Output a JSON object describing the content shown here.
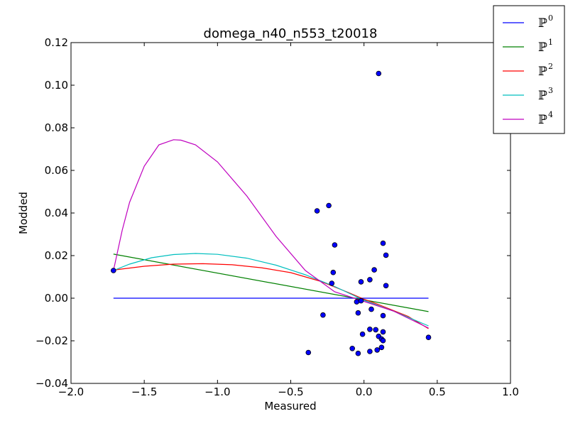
{
  "chart_data": {
    "type": "scatter",
    "title": "domega_n40_n553_t20018",
    "xlabel": "Measured",
    "ylabel": "Modded",
    "xlim": [
      -2.0,
      1.0
    ],
    "ylim": [
      -0.04,
      0.12
    ],
    "xticks": [
      -2.0,
      -1.5,
      -1.0,
      -0.5,
      0.0,
      0.5,
      1.0
    ],
    "xtick_labels": [
      "−2.0",
      "−1.5",
      "−1.0",
      "−0.5",
      "0.0",
      "0.5",
      "1.0"
    ],
    "yticks": [
      -0.04,
      -0.02,
      0.0,
      0.02,
      0.04,
      0.06,
      0.08,
      0.1,
      0.12
    ],
    "ytick_labels": [
      "−0.04",
      "−0.02",
      "0.00",
      "0.02",
      "0.04",
      "0.06",
      "0.08",
      "0.10",
      "0.12"
    ],
    "grid": false,
    "legend_position": "top-right (outside)",
    "points": {
      "color": "#0000ff",
      "x": [
        -1.71,
        0.1,
        -0.24,
        -0.32,
        -0.2,
        0.13,
        0.15,
        -0.21,
        0.07,
        -0.22,
        0.04,
        -0.02,
        0.15,
        -0.05,
        -0.02,
        -0.28,
        0.05,
        -0.04,
        0.13,
        0.04,
        0.08,
        0.13,
        -0.01,
        0.1,
        0.12,
        0.13,
        0.44,
        0.12,
        -0.08,
        0.09,
        0.04,
        -0.04,
        -0.38
      ],
      "y": [
        0.013,
        0.1055,
        0.0435,
        0.041,
        0.025,
        0.0258,
        0.0202,
        0.0121,
        0.0133,
        0.007,
        0.0087,
        0.0077,
        0.0059,
        -0.0017,
        -0.0012,
        -0.0079,
        -0.0052,
        -0.0069,
        -0.0082,
        -0.0146,
        -0.0148,
        -0.0158,
        -0.0169,
        -0.0179,
        -0.0192,
        -0.0199,
        -0.0184,
        -0.0231,
        -0.0236,
        -0.0243,
        -0.025,
        -0.0259,
        -0.0255
      ]
    },
    "series": [
      {
        "name": "P0",
        "label_base": "ℙ",
        "label_sup": "0",
        "color": "#0000ff",
        "x": [
          -1.71,
          0.44
        ],
        "y": [
          0.0,
          0.0
        ]
      },
      {
        "name": "P1",
        "label_base": "ℙ",
        "label_sup": "1",
        "color": "#008000",
        "x": [
          -1.71,
          0.44
        ],
        "y": [
          0.0207,
          -0.0063
        ]
      },
      {
        "name": "P2",
        "label_base": "ℙ",
        "label_sup": "2",
        "color": "#ff0000",
        "x": [
          -1.71,
          -1.5,
          -1.3,
          -1.1,
          -0.9,
          -0.7,
          -0.5,
          -0.3,
          -0.1,
          0.0,
          0.1,
          0.3,
          0.44
        ],
        "y": [
          0.0132,
          0.015,
          0.016,
          0.0162,
          0.0157,
          0.0143,
          0.012,
          0.008,
          0.0025,
          -0.0005,
          -0.003,
          -0.0085,
          -0.0143
        ]
      },
      {
        "name": "P3",
        "label_base": "ℙ",
        "label_sup": "3",
        "color": "#00bfbf",
        "x": [
          -1.71,
          -1.6,
          -1.45,
          -1.3,
          -1.15,
          -1.0,
          -0.8,
          -0.6,
          -0.4,
          -0.2,
          0.0,
          0.2,
          0.44
        ],
        "y": [
          0.013,
          0.016,
          0.019,
          0.0205,
          0.021,
          0.0206,
          0.0188,
          0.0155,
          0.011,
          0.0055,
          -0.001,
          -0.006,
          -0.013
        ]
      },
      {
        "name": "P4",
        "label_base": "ℙ",
        "label_sup": "4",
        "color": "#bf00bf",
        "x": [
          -1.71,
          -1.65,
          -1.6,
          -1.5,
          -1.4,
          -1.3,
          -1.25,
          -1.15,
          -1.0,
          -0.8,
          -0.6,
          -0.4,
          -0.2,
          0.0,
          0.2,
          0.44
        ],
        "y": [
          0.013,
          0.032,
          0.045,
          0.062,
          0.072,
          0.0744,
          0.0742,
          0.072,
          0.064,
          0.048,
          0.029,
          0.013,
          0.003,
          -0.0015,
          -0.006,
          -0.014
        ]
      }
    ]
  }
}
